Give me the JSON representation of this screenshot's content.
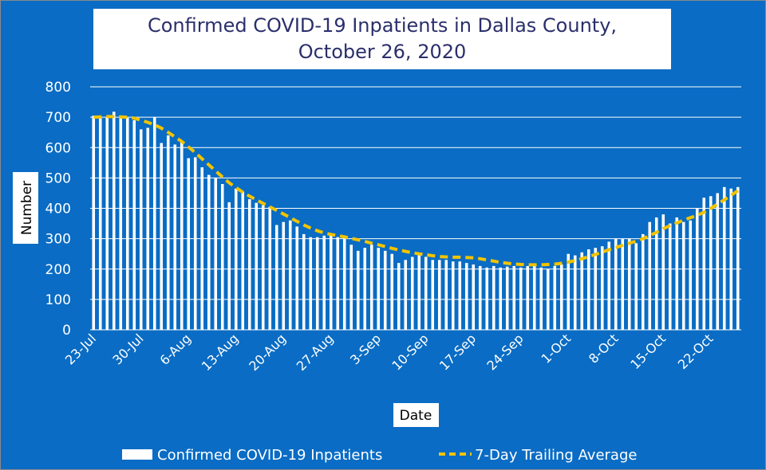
{
  "chart_data": {
    "type": "bar",
    "title": "Confirmed COVID-19 Inpatients in Dallas County, October 26, 2020",
    "xlabel": "Date",
    "ylabel": "Number",
    "ylim": [
      0,
      800
    ],
    "yticks": [
      0,
      100,
      200,
      300,
      400,
      500,
      600,
      700,
      800
    ],
    "xtick_labels": [
      "23-Jul",
      "30-Jul",
      "6-Aug",
      "13-Aug",
      "20-Aug",
      "27-Aug",
      "3-Sep",
      "10-Sep",
      "17-Sep",
      "24-Sep",
      "1-Oct",
      "8-Oct",
      "15-Oct",
      "22-Oct"
    ],
    "grid": true,
    "legend_position": "bottom",
    "colors": {
      "background": "#0a6cc4",
      "bars": "#ffffff",
      "average_line": "#f2c300",
      "grid": "#ffffff"
    },
    "x": [
      "23-Jul",
      "24-Jul",
      "25-Jul",
      "26-Jul",
      "27-Jul",
      "28-Jul",
      "29-Jul",
      "30-Jul",
      "31-Jul",
      "1-Aug",
      "2-Aug",
      "3-Aug",
      "4-Aug",
      "5-Aug",
      "6-Aug",
      "7-Aug",
      "8-Aug",
      "9-Aug",
      "10-Aug",
      "11-Aug",
      "12-Aug",
      "13-Aug",
      "14-Aug",
      "15-Aug",
      "16-Aug",
      "17-Aug",
      "18-Aug",
      "19-Aug",
      "20-Aug",
      "21-Aug",
      "22-Aug",
      "23-Aug",
      "24-Aug",
      "25-Aug",
      "26-Aug",
      "27-Aug",
      "28-Aug",
      "29-Aug",
      "30-Aug",
      "31-Aug",
      "1-Sep",
      "2-Sep",
      "3-Sep",
      "4-Sep",
      "5-Sep",
      "6-Sep",
      "7-Sep",
      "8-Sep",
      "9-Sep",
      "10-Sep",
      "11-Sep",
      "12-Sep",
      "13-Sep",
      "14-Sep",
      "15-Sep",
      "16-Sep",
      "17-Sep",
      "18-Sep",
      "19-Sep",
      "20-Sep",
      "21-Sep",
      "22-Sep",
      "23-Sep",
      "24-Sep",
      "25-Sep",
      "26-Sep",
      "27-Sep",
      "28-Sep",
      "29-Sep",
      "30-Sep",
      "1-Oct",
      "2-Oct",
      "3-Oct",
      "4-Oct",
      "5-Oct",
      "6-Oct",
      "7-Oct",
      "8-Oct",
      "9-Oct",
      "10-Oct",
      "11-Oct",
      "12-Oct",
      "13-Oct",
      "14-Oct",
      "15-Oct",
      "16-Oct",
      "17-Oct",
      "18-Oct",
      "19-Oct",
      "20-Oct",
      "21-Oct",
      "22-Oct",
      "23-Oct",
      "24-Oct",
      "25-Oct",
      "26-Oct"
    ],
    "series": [
      {
        "name": "Confirmed COVID-19 Inpatients",
        "kind": "bar",
        "values": [
          705,
          700,
          700,
          718,
          705,
          698,
          690,
          660,
          665,
          700,
          615,
          640,
          610,
          620,
          565,
          568,
          535,
          510,
          500,
          480,
          420,
          465,
          455,
          430,
          418,
          410,
          405,
          345,
          355,
          360,
          340,
          315,
          305,
          305,
          310,
          315,
          305,
          300,
          280,
          260,
          270,
          280,
          270,
          260,
          250,
          220,
          230,
          240,
          245,
          240,
          230,
          230,
          230,
          225,
          225,
          220,
          215,
          210,
          205,
          210,
          205,
          208,
          210,
          205,
          210,
          210,
          205,
          200,
          210,
          215,
          250,
          245,
          255,
          265,
          270,
          275,
          290,
          300,
          300,
          300,
          285,
          315,
          355,
          370,
          380,
          350,
          370,
          355,
          360,
          400,
          435,
          440,
          450,
          470,
          465,
          470
        ]
      },
      {
        "name": "7-Day Trailing Average",
        "kind": "line",
        "values": [
          700,
          701,
          702,
          702,
          701,
          700,
          697,
          690,
          683,
          675,
          664,
          650,
          635,
          620,
          602,
          583,
          563,
          543,
          523,
          503,
          484,
          468,
          453,
          440,
          428,
          416,
          405,
          393,
          381,
          369,
          357,
          345,
          335,
          326,
          319,
          314,
          310,
          306,
          301,
          296,
          291,
          285,
          280,
          274,
          268,
          263,
          258,
          254,
          250,
          247,
          244,
          241,
          240,
          239,
          239,
          238,
          237,
          234,
          230,
          226,
          222,
          219,
          217,
          215,
          214,
          214,
          214,
          215,
          216,
          219,
          223,
          228,
          234,
          241,
          248,
          256,
          264,
          271,
          278,
          285,
          292,
          300,
          310,
          321,
          333,
          343,
          352,
          361,
          369,
          377,
          387,
          400,
          414,
          428,
          443,
          458
        ]
      }
    ]
  }
}
